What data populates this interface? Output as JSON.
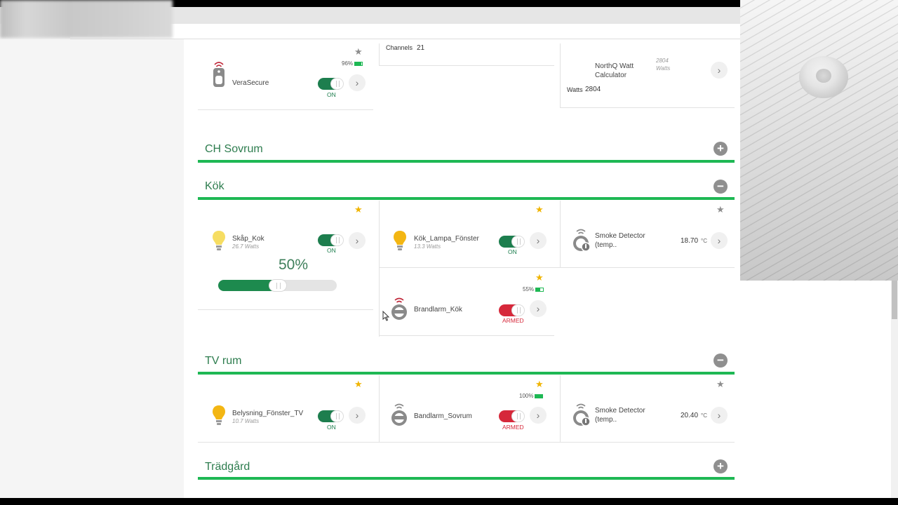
{
  "devices_top": {
    "verasecure": {
      "name": "VeraSecure",
      "battery": "96%",
      "battery_level": 0.96,
      "state": "ON"
    },
    "channels": {
      "label": "Channels",
      "value": "21"
    },
    "northq": {
      "name_line1": "NorthQ Watt",
      "name_line2": "Calculator",
      "reading": "2804",
      "reading_unit": "Watts",
      "watts_label": "Watts",
      "watts_value": "2804"
    }
  },
  "rooms": {
    "ch_sovrum": {
      "title": "CH Sovrum",
      "button": "+"
    },
    "kok": {
      "title": "Kök",
      "button": "−"
    },
    "tv_rum": {
      "title": "TV rum",
      "button": "−"
    },
    "tradgard": {
      "title": "Trädgård",
      "button": "+"
    }
  },
  "kok": {
    "skap_kok": {
      "name": "Skåp_Kok",
      "sub": "26.7 Watts",
      "state": "ON",
      "percent": "50%",
      "level": 0.5
    },
    "kok_lampa": {
      "name": "Kök_Lampa_Fönster",
      "sub": "13.3 Watts",
      "state": "ON"
    },
    "smoke": {
      "name_line1": "Smoke Detector",
      "name_line2": "(temp..",
      "temp": "18.70",
      "unit": "°C"
    },
    "brandlarm": {
      "name": "Brandlarm_Kök",
      "battery": "55%",
      "battery_level": 0.55,
      "state": "ARMED"
    }
  },
  "tv_rum": {
    "belysning": {
      "name": "Belysning_Fönster_TV",
      "sub": "10.7 Watts",
      "state": "ON"
    },
    "bandlarm": {
      "name": "Bandlarm_Sovrum",
      "battery": "100%",
      "battery_level": 1.0,
      "state": "ARMED"
    },
    "smoke": {
      "name_line1": "Smoke Detector",
      "name_line2": "(temp..",
      "temp": "20.40",
      "unit": "°C"
    }
  },
  "icons": {
    "star": "★",
    "arrow": "›"
  },
  "colors": {
    "accent": "#1eb854",
    "toggle_on": "#1d7e4e",
    "toggle_armed": "#d6283a",
    "star_on": "#f0b400",
    "star_off": "#8e8e8e",
    "title": "#2e7d4f"
  }
}
